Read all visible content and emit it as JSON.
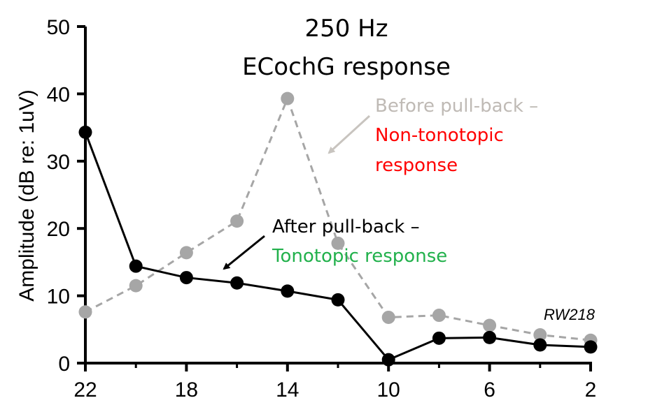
{
  "chart_data": {
    "type": "line",
    "title": "250 Hz",
    "subtitle": "ECochG response",
    "xlabel": "",
    "ylabel": "Amplitude (dB re: 1uV)",
    "xlim": [
      22,
      2
    ],
    "ylim": [
      0,
      50
    ],
    "x_ticks": [
      "22",
      "18",
      "14",
      "10",
      "6",
      "2"
    ],
    "y_ticks": [
      "0",
      "10",
      "20",
      "30",
      "40",
      "50"
    ],
    "grid": false,
    "x": [
      22,
      20,
      18,
      16,
      14,
      12,
      10,
      8,
      6,
      4,
      2
    ],
    "series": [
      {
        "key": "before",
        "color": "#a6a6a6",
        "style": "dashed",
        "values": [
          7.6,
          11.5,
          16.4,
          21.1,
          39.3,
          17.8,
          6.8,
          7.1,
          5.6,
          4.2,
          3.4
        ]
      },
      {
        "key": "after",
        "color": "#000000",
        "style": "solid",
        "values": [
          34.3,
          14.4,
          12.7,
          11.9,
          10.7,
          9.4,
          0.5,
          3.7,
          3.8,
          2.7,
          2.4
        ]
      }
    ],
    "annotations": {
      "before_line1": "Before pull-back –",
      "before_line2": "Non-tonotopic",
      "before_line3": "response",
      "after_line1": "After pull-back –",
      "after_line2": "Tonotopic response",
      "tag": "RW218"
    },
    "colors": {
      "before_text": "#bfbab5",
      "non_tonotopic_text": "#ff0000",
      "after_text": "#000000",
      "tonotopic_text": "#22b14c",
      "before_arrow": "#c8c4bf",
      "after_arrow": "#000000"
    }
  }
}
